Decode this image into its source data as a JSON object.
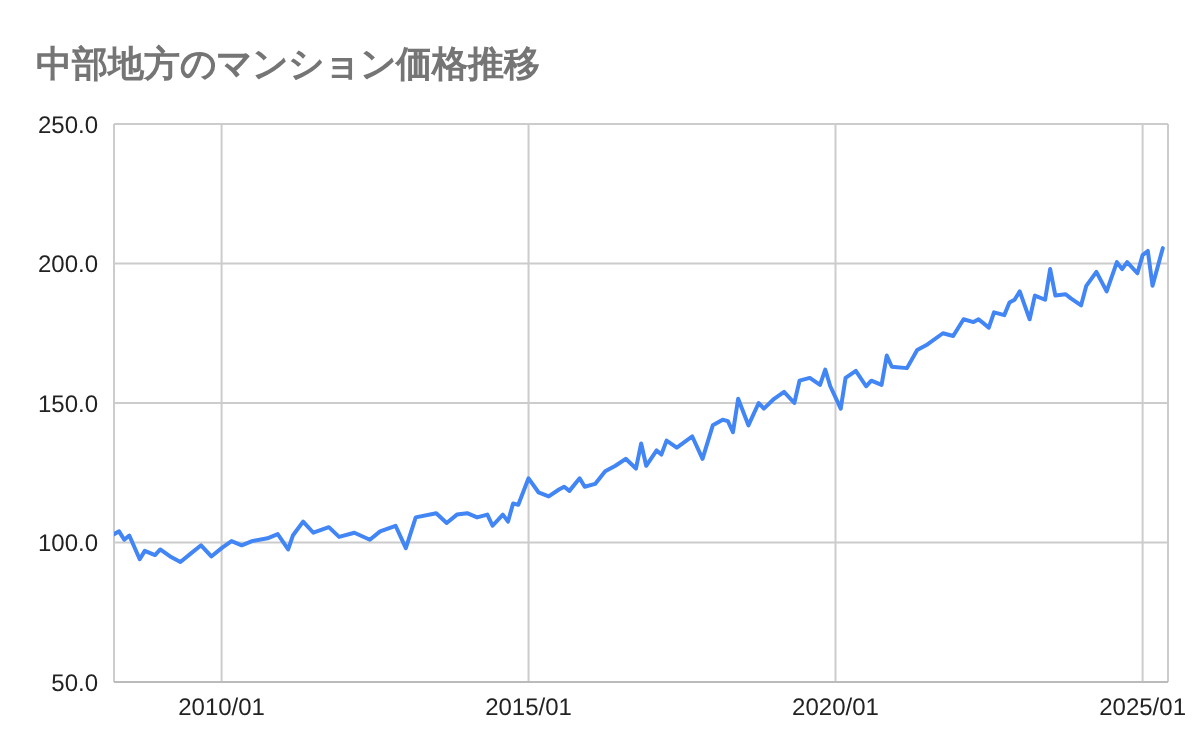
{
  "chart_data": {
    "type": "line",
    "title": "中部地方のマンション価格推移",
    "x": [
      "2008-04",
      "2008-05",
      "2008-06",
      "2008-07",
      "2008-09",
      "2008-10",
      "2008-12",
      "2009-01",
      "2009-03",
      "2009-05",
      "2009-07",
      "2009-09",
      "2009-11",
      "2010-01",
      "2010-03",
      "2010-05",
      "2010-07",
      "2010-10",
      "2010-12",
      "2011-02",
      "2011-03",
      "2011-05",
      "2011-07",
      "2011-10",
      "2011-12",
      "2012-03",
      "2012-06",
      "2012-08",
      "2012-11",
      "2013-01",
      "2013-03",
      "2013-07",
      "2013-09",
      "2013-11",
      "2014-01",
      "2014-03",
      "2014-05",
      "2014-06",
      "2014-08",
      "2014-09",
      "2014-10",
      "2014-11",
      "2015-01",
      "2015-03",
      "2015-05",
      "2015-07",
      "2015-08",
      "2015-09",
      "2015-11",
      "2015-12",
      "2016-02",
      "2016-04",
      "2016-06",
      "2016-08",
      "2016-10",
      "2016-11",
      "2016-12",
      "2017-02",
      "2017-03",
      "2017-04",
      "2017-06",
      "2017-09",
      "2017-11",
      "2018-01",
      "2018-03",
      "2018-04",
      "2018-05",
      "2018-06",
      "2018-08",
      "2018-10",
      "2018-11",
      "2019-01",
      "2019-03",
      "2019-05",
      "2019-06",
      "2019-08",
      "2019-10",
      "2019-11",
      "2019-12",
      "2020-02",
      "2020-03",
      "2020-05",
      "2020-07",
      "2020-08",
      "2020-10",
      "2020-11",
      "2020-12",
      "2021-03",
      "2021-05",
      "2021-07",
      "2021-10",
      "2021-12",
      "2022-02",
      "2022-04",
      "2022-05",
      "2022-07",
      "2022-08",
      "2022-10",
      "2022-11",
      "2022-12",
      "2023-01",
      "2023-03",
      "2023-04",
      "2023-06",
      "2023-07",
      "2023-08",
      "2023-10",
      "2023-11",
      "2024-01",
      "2024-02",
      "2024-04",
      "2024-06",
      "2024-08",
      "2024-09",
      "2024-10",
      "2024-12",
      "2025-01",
      "2025-02",
      "2025-03",
      "2025-05"
    ],
    "series": [
      {
        "color": "#4285f4",
        "values": [
          103,
          104,
          101,
          102.5,
          94,
          97,
          95.5,
          97.5,
          95,
          93,
          96,
          99,
          95,
          98,
          100.5,
          99,
          100.5,
          101.5,
          103,
          97.5,
          102.5,
          107.5,
          103.5,
          105.5,
          102,
          103.5,
          101,
          104,
          106,
          98,
          109,
          110.5,
          107,
          110,
          110.5,
          109,
          110,
          106,
          110,
          107.5,
          114,
          113.5,
          123,
          118,
          116.5,
          119,
          120,
          118.5,
          123,
          120,
          121,
          125.5,
          127.5,
          130,
          126.5,
          135.5,
          127.5,
          133,
          131.5,
          136.5,
          134,
          138,
          130,
          142,
          144,
          143.5,
          139.5,
          151.5,
          142,
          150,
          148,
          151.5,
          154,
          150,
          158,
          159,
          156.5,
          162,
          156,
          148,
          159,
          161.5,
          156,
          158,
          156.5,
          167,
          163,
          162.5,
          169,
          171,
          175,
          174,
          180,
          179,
          180,
          177,
          182.5,
          181.5,
          186,
          187,
          190,
          180,
          188.5,
          187,
          198,
          188.5,
          189,
          187.5,
          185,
          192,
          197,
          190,
          200.5,
          198,
          200.5,
          196.5,
          203,
          204.5,
          192,
          205.5
        ]
      }
    ],
    "xlim": [
      "2008-04",
      "2025-06"
    ],
    "xticks": [
      {
        "value": "2010-01",
        "label": "2010/01"
      },
      {
        "value": "2015-01",
        "label": "2015/01"
      },
      {
        "value": "2020-01",
        "label": "2020/01"
      },
      {
        "value": "2025-01",
        "label": "2025/01"
      }
    ],
    "ylim": [
      50,
      250
    ],
    "yticks": [
      {
        "value": 50,
        "label": "50.0"
      },
      {
        "value": 100,
        "label": "100.0"
      },
      {
        "value": 150,
        "label": "150.0"
      },
      {
        "value": 200,
        "label": "200.0"
      },
      {
        "value": 250,
        "label": "250.0"
      }
    ],
    "grid": true
  }
}
